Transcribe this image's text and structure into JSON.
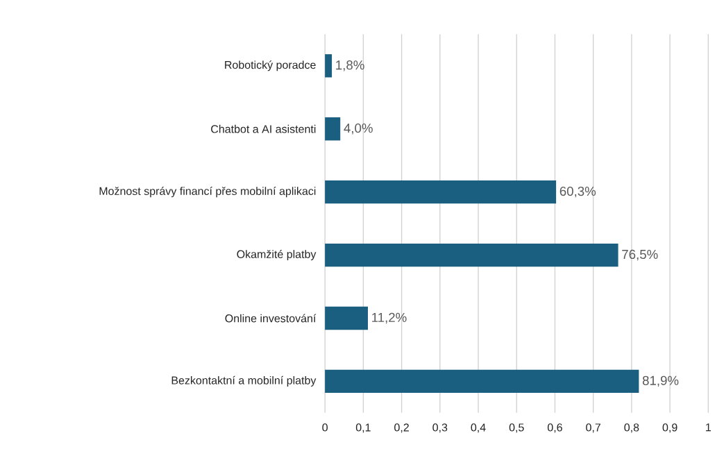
{
  "chart_data": {
    "type": "bar",
    "orientation": "horizontal",
    "categories": [
      "Robotický poradce",
      "Chatbot a AI asistenti",
      "Možnost správy financí přes mobilní aplikaci",
      "Okamžité platby",
      "Online investování",
      "Bezkontaktní a mobilní platby"
    ],
    "values": [
      0.018,
      0.04,
      0.603,
      0.765,
      0.112,
      0.819
    ],
    "value_labels": [
      "1,8%",
      "4,0%",
      "60,3%",
      "76,5%",
      "11,2%",
      "81,9%"
    ],
    "color": "#1a5f80",
    "xlim": [
      0,
      1
    ],
    "xticks": [
      0,
      {
        "value": 0.1,
        "label": "0,1"
      },
      {
        "value": 0.2,
        "label": "0,2"
      },
      {
        "value": 0.3,
        "label": "0,3"
      },
      {
        "value": 0.4,
        "label": "0,4"
      },
      {
        "value": 0.5,
        "label": "0,5"
      },
      {
        "value": 0.6,
        "label": "0,6"
      },
      {
        "value": 0.7,
        "label": "0,7"
      },
      {
        "value": 0.8,
        "label": "0,8"
      },
      {
        "value": 0.9,
        "label": "0,9"
      },
      1
    ],
    "grid": "x"
  }
}
